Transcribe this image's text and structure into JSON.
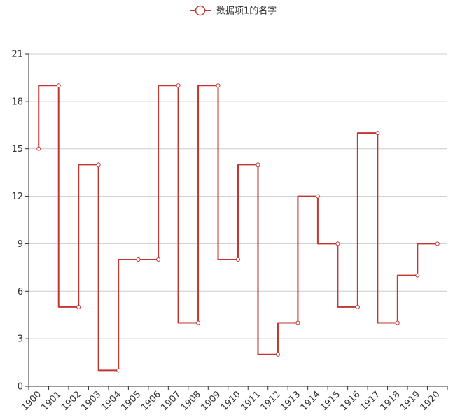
{
  "chart_data": {
    "type": "line",
    "step": "start",
    "categories": [
      "1900",
      "1901",
      "1902",
      "1903",
      "1904",
      "1905",
      "1906",
      "1907",
      "1908",
      "1909",
      "1910",
      "1911",
      "1912",
      "1913",
      "1914",
      "1915",
      "1916",
      "1917",
      "1918",
      "1919",
      "1920"
    ],
    "series": [
      {
        "name": "数据项1的名字",
        "color": "#c23531",
        "values": [
          15,
          19,
          5,
          14,
          1,
          8,
          8,
          19,
          4,
          19,
          8,
          14,
          2,
          4,
          12,
          9,
          5,
          16,
          4,
          7,
          9
        ]
      }
    ],
    "title": "",
    "xlabel": "",
    "ylabel": "",
    "ylim": [
      0,
      21
    ],
    "yticks": [
      "0",
      "3",
      "6",
      "9",
      "12",
      "15",
      "18",
      "21"
    ],
    "grid": true,
    "legend_position": "top-center"
  },
  "colors": {
    "series": "#c23531",
    "grid": "#cccccc",
    "axis": "#333333",
    "text": "#333333"
  }
}
